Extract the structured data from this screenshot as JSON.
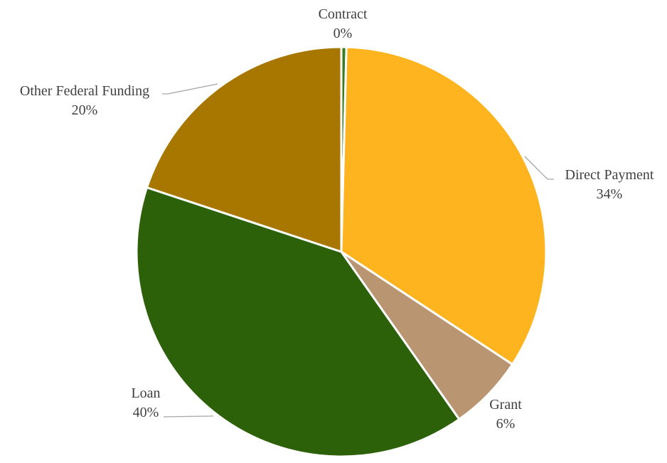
{
  "chart_data": {
    "type": "pie",
    "slices": [
      {
        "label": "Contract",
        "pct_label": "0%",
        "value": 0.4,
        "color": "#3a7d1c"
      },
      {
        "label": "Direct Payment",
        "pct_label": "34%",
        "value": 34,
        "color": "#fdb41e"
      },
      {
        "label": "Grant",
        "pct_label": "6%",
        "value": 6,
        "color": "#b99572"
      },
      {
        "label": "Loan",
        "pct_label": "40%",
        "value": 40,
        "color": "#2c6109"
      },
      {
        "label": "Other Federal Funding",
        "pct_label": "20%",
        "value": 20,
        "color": "#a87700"
      }
    ],
    "start_angle_deg": 0,
    "direction": "clockwise",
    "label_style": "outside-with-leader-lines",
    "legend": "none"
  }
}
